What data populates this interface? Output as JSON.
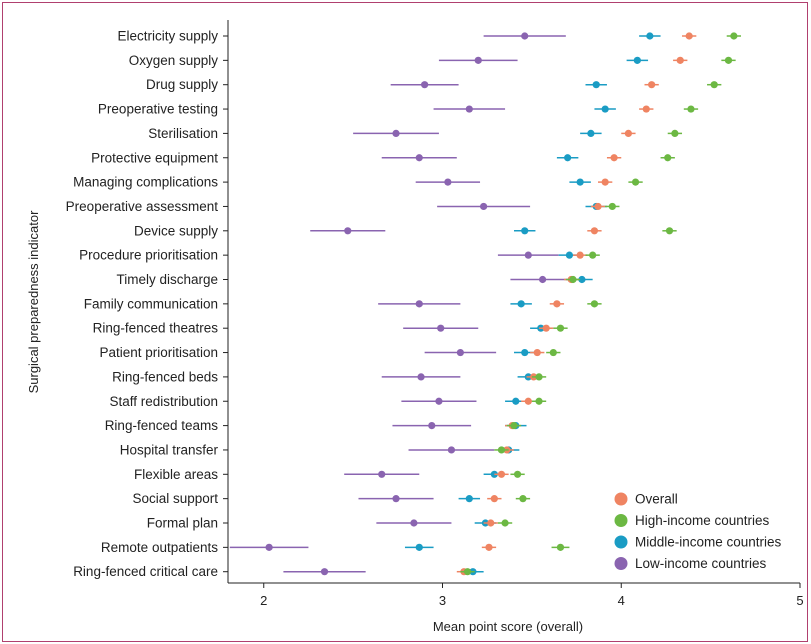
{
  "colors": {
    "frame": "#b0406f",
    "overall": "#ef8462",
    "high": "#6cb843",
    "middle": "#1a9cc4",
    "low": "#8a64b0"
  },
  "chart_data": {
    "type": "scatter",
    "title": "",
    "xlabel": "Mean point score (overall)",
    "ylabel": "Surgical preparedness indicator",
    "xlim": [
      1.8,
      5
    ],
    "xticks": [
      2,
      3,
      4,
      5
    ],
    "grid": false,
    "legend_position": "bottom-right",
    "categories": [
      "Electricity  supply",
      "Oxygen supply",
      "Drug supply",
      "Preoperative testing",
      "Sterilisation",
      "Protective equipment",
      "Managing complications",
      "Preoperative assessment",
      "Device supply",
      "Procedure prioritisation",
      "Timely discharge",
      "Family communication",
      "Ring-fenced theatres",
      "Patient prioritisation",
      "Ring-fenced beds",
      "Staff redistribution",
      "Ring-fenced teams",
      "Hospital transfer",
      "Flexible areas",
      "Social support",
      "Formal plan",
      "Remote outpatients",
      "Ring-fenced critical care"
    ],
    "series": [
      {
        "name": "Overall",
        "color": "#ef8462",
        "values": [
          4.38,
          4.33,
          4.17,
          4.14,
          4.04,
          3.96,
          3.91,
          3.87,
          3.85,
          3.77,
          3.72,
          3.64,
          3.58,
          3.53,
          3.51,
          3.48,
          3.39,
          3.36,
          3.33,
          3.29,
          3.27,
          3.26,
          3.12
        ],
        "err": [
          0.04,
          0.04,
          0.04,
          0.04,
          0.04,
          0.04,
          0.04,
          0.04,
          0.04,
          0.04,
          0.04,
          0.04,
          0.04,
          0.04,
          0.04,
          0.04,
          0.04,
          0.04,
          0.04,
          0.04,
          0.04,
          0.04,
          0.04
        ]
      },
      {
        "name": "High-income countries",
        "color": "#6cb843",
        "values": [
          4.63,
          4.6,
          4.52,
          4.39,
          4.3,
          4.26,
          4.08,
          3.95,
          4.27,
          3.84,
          3.73,
          3.85,
          3.66,
          3.62,
          3.54,
          3.54,
          3.4,
          3.33,
          3.42,
          3.45,
          3.35,
          3.66,
          3.14
        ],
        "err": [
          0.04,
          0.04,
          0.04,
          0.04,
          0.04,
          0.04,
          0.04,
          0.04,
          0.04,
          0.04,
          0.04,
          0.04,
          0.04,
          0.04,
          0.04,
          0.04,
          0.04,
          0.04,
          0.04,
          0.04,
          0.04,
          0.05,
          0.04
        ]
      },
      {
        "name": "Middle-income countries",
        "color": "#1a9cc4",
        "values": [
          4.16,
          4.09,
          3.86,
          3.91,
          3.83,
          3.7,
          3.77,
          3.86,
          3.46,
          3.71,
          3.78,
          3.44,
          3.55,
          3.46,
          3.48,
          3.41,
          3.41,
          3.37,
          3.29,
          3.15,
          3.24,
          2.87,
          3.17
        ],
        "err": [
          0.06,
          0.06,
          0.06,
          0.06,
          0.06,
          0.06,
          0.06,
          0.06,
          0.06,
          0.06,
          0.06,
          0.06,
          0.06,
          0.06,
          0.06,
          0.06,
          0.06,
          0.06,
          0.06,
          0.06,
          0.06,
          0.08,
          0.06
        ]
      },
      {
        "name": "Low-income countries",
        "color": "#8a64b0",
        "values": [
          3.46,
          3.2,
          2.9,
          3.15,
          2.74,
          2.87,
          3.03,
          3.23,
          2.47,
          3.48,
          3.56,
          2.87,
          2.99,
          3.1,
          2.88,
          2.98,
          2.94,
          3.05,
          2.66,
          2.74,
          2.84,
          2.03,
          2.34
        ],
        "err": [
          0.23,
          0.22,
          0.19,
          0.2,
          0.24,
          0.21,
          0.18,
          0.26,
          0.21,
          0.17,
          0.18,
          0.23,
          0.21,
          0.2,
          0.22,
          0.21,
          0.22,
          0.24,
          0.21,
          0.21,
          0.21,
          0.22,
          0.23
        ]
      }
    ],
    "legend": [
      {
        "label": "Overall",
        "color": "#ef8462"
      },
      {
        "label": "High-income countries",
        "color": "#6cb843"
      },
      {
        "label": "Middle-income countries",
        "color": "#1a9cc4"
      },
      {
        "label": "Low-income countries",
        "color": "#8a64b0"
      }
    ]
  }
}
